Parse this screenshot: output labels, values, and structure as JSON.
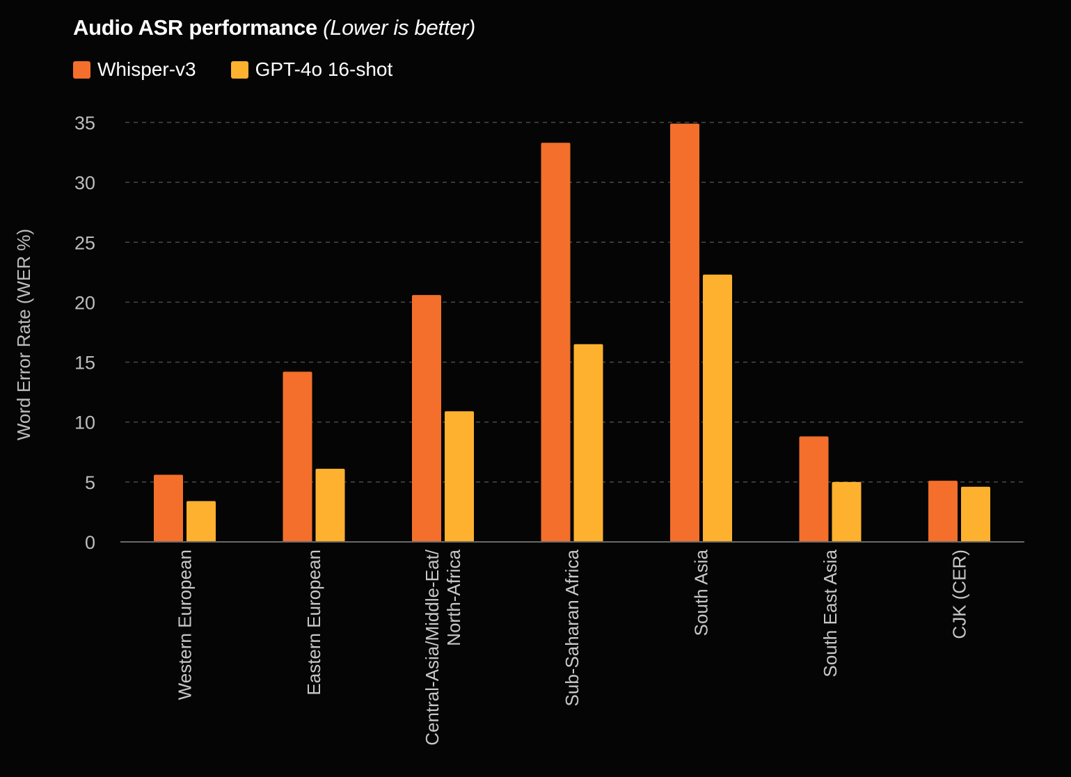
{
  "chart_data": {
    "type": "bar",
    "title": "Audio ASR performance",
    "subtitle": "(Lower is better)",
    "ylabel": "Word Error Rate (WER %)",
    "xlabel": "",
    "ylim": [
      0,
      35
    ],
    "yticks": [
      0,
      5,
      10,
      15,
      20,
      25,
      30,
      35
    ],
    "grid": true,
    "legend_position": "top-left",
    "categories": [
      [
        "Western European"
      ],
      [
        "Eastern European"
      ],
      [
        "Central-Asia/Middle-Eat/",
        "North-Africa"
      ],
      [
        "Sub-Saharan Africa"
      ],
      [
        "South Asia"
      ],
      [
        "South East Asia"
      ],
      [
        "CJK (CER)"
      ]
    ],
    "series": [
      {
        "name": "Whisper-v3",
        "color": "#F36F2B",
        "values": [
          5.6,
          14.2,
          20.6,
          33.3,
          34.9,
          8.8,
          5.1
        ]
      },
      {
        "name": "GPT-4o 16-shot",
        "color": "#FEB12F",
        "values": [
          3.4,
          6.1,
          10.9,
          16.5,
          22.3,
          5.0,
          4.6
        ]
      }
    ]
  }
}
